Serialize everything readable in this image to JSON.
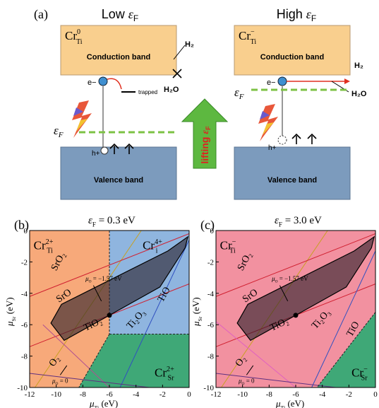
{
  "panel_a": {
    "label": "(a)",
    "lifting": {
      "text": "lifting ",
      "symbol": "ε",
      "sub": "F"
    },
    "left": {
      "title": {
        "text": "Low ",
        "symbol": "ε",
        "sub": "F"
      },
      "defect": {
        "base": "Cr",
        "sup": "0",
        "sub": "Ti"
      },
      "conduction": "Conduction band",
      "valence": "Valence band",
      "electron": "e−",
      "hole": "h+",
      "trapped": "trapped",
      "h2": "H₂",
      "h2o": "H₂O",
      "fermi": {
        "symbol": "ε",
        "sub": "F"
      }
    },
    "right": {
      "title": {
        "text": "High ",
        "symbol": "ε",
        "sub": "F"
      },
      "defect": {
        "base": "Cr",
        "sup": "−",
        "sub": "Ti"
      },
      "conduction": "Conduction band",
      "valence": "Valence band",
      "electron": "e−",
      "hole": "h+",
      "h2": "H₂",
      "h2o": "H₂O",
      "fermi": {
        "symbol": "ε",
        "sub": "F"
      }
    }
  },
  "panels": [
    {
      "label": "(b)",
      "title": {
        "symbol": "ε",
        "sub": "F",
        "rest": " = 0.3 eV"
      },
      "xlabel": {
        "symbol": "μ",
        "sub": "Ti",
        "rest": " (eV)"
      },
      "ylabel": {
        "symbol": "μ",
        "sub": "Sr",
        "rest": " (eV)"
      },
      "xticks": [
        "-12",
        "-10",
        "-8",
        "-6",
        "-4",
        "-2",
        "0"
      ],
      "yticks": [
        "0",
        "-2",
        "-4",
        "-6",
        "-8",
        "-10"
      ],
      "regions": [
        {
          "base": "Cr",
          "sup": "2+",
          "sub": "Ti"
        },
        {
          "base": "Cr",
          "sup": "4+",
          "sub": "i"
        },
        {
          "base": "Cr",
          "sup": "2+",
          "sub": "Sr"
        }
      ],
      "phases": [
        "SrO₂",
        "SrO",
        "TiO₂",
        "Ti₂O₃",
        "TiO",
        "O₂"
      ],
      "mu_high": {
        "symbol": "μ",
        "sub": "O",
        "rest": " = −1.57 eV"
      },
      "mu_zero": {
        "symbol": "μ",
        "sub": "O",
        "rest": " = 0"
      }
    },
    {
      "label": "(c)",
      "title": {
        "symbol": "ε",
        "sub": "F",
        "rest": " = 3.0 eV"
      },
      "xlabel": {
        "symbol": "μ",
        "sub": "Ti",
        "rest": " (eV)"
      },
      "ylabel": {
        "symbol": "μ",
        "sub": "Sr",
        "rest": " (eV)"
      },
      "xticks": [
        "-12",
        "-10",
        "-8",
        "-6",
        "-4",
        "-2",
        "0"
      ],
      "yticks": [
        "0",
        "-2",
        "-4",
        "-6",
        "-8",
        "-10"
      ],
      "regions": [
        {
          "base": "Cr",
          "sup": "−",
          "sub": "Ti"
        },
        {
          "base": "Cr",
          "sup": "−",
          "sub": "Sr"
        }
      ],
      "phases": [
        "SrO₂",
        "SrO",
        "TiO₂",
        "Ti₂O₃",
        "TiO",
        "O₂"
      ],
      "mu_high": {
        "symbol": "μ",
        "sub": "O",
        "rest": " = −1.57 eV"
      },
      "mu_zero": {
        "symbol": "μ",
        "sub": "O",
        "rest": " = 0"
      }
    }
  ]
}
